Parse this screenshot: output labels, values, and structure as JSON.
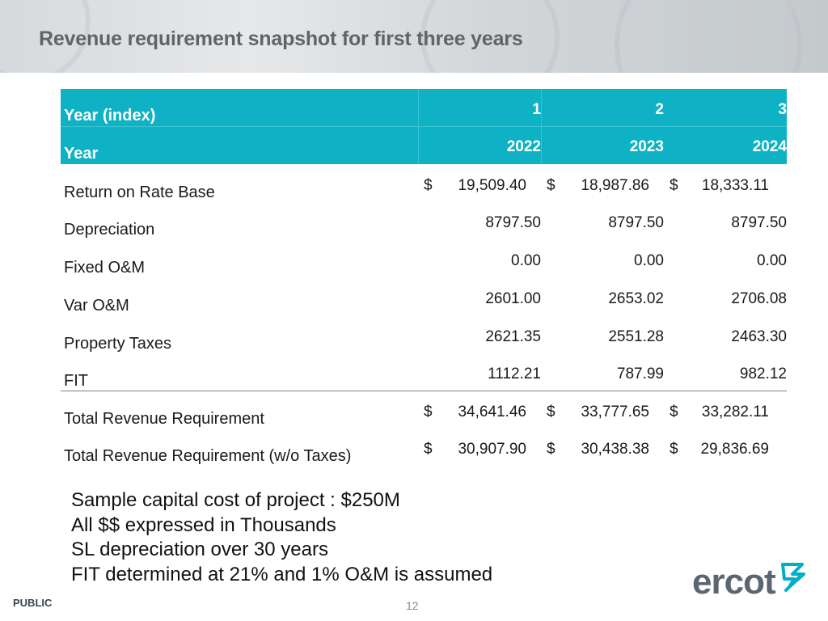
{
  "header": {
    "title": "Revenue requirement snapshot for first three years"
  },
  "table": {
    "header_rows": [
      {
        "label": "Year (index)",
        "values": [
          "1",
          "2",
          "3"
        ]
      },
      {
        "label": "Year",
        "values": [
          "2022",
          "2023",
          "2024"
        ]
      }
    ],
    "rows": [
      {
        "label": "Return on Rate Base",
        "currency": "$",
        "values": [
          "19,509.40",
          "18,987.86",
          "18,333.11"
        ]
      },
      {
        "label": "Depreciation",
        "values": [
          "8797.50",
          "8797.50",
          "8797.50"
        ]
      },
      {
        "label": "Fixed O&M",
        "values": [
          "0.00",
          "0.00",
          "0.00"
        ]
      },
      {
        "label": "Var O&M",
        "values": [
          "2601.00",
          "2653.02",
          "2706.08"
        ]
      },
      {
        "label": "Property Taxes",
        "values": [
          "2621.35",
          "2551.28",
          "2463.30"
        ]
      },
      {
        "label": "FIT",
        "values": [
          "1112.21",
          "787.99",
          "982.12"
        ]
      }
    ],
    "total_rows": [
      {
        "label": "Total Revenue Requirement",
        "currency": "$",
        "values": [
          "34,641.46",
          "33,777.65",
          "33,282.11"
        ]
      },
      {
        "label": "Total Revenue Requirement (w/o Taxes)",
        "currency": "$",
        "values": [
          "30,907.90",
          "30,438.38",
          "29,836.69"
        ]
      }
    ]
  },
  "notes": [
    "Sample capital cost of project : $250M",
    "All $$ expressed in Thousands",
    "SL depreciation over 30 years",
    "FIT determined at 21% and 1% O&M is assumed"
  ],
  "footer": {
    "classification": "PUBLIC",
    "page_number": "12",
    "logo_text": "ercot"
  },
  "colors": {
    "header_fill": "#0fb2c4",
    "logo_blue": "#00aec7",
    "logo_gray": "#5b6670"
  }
}
